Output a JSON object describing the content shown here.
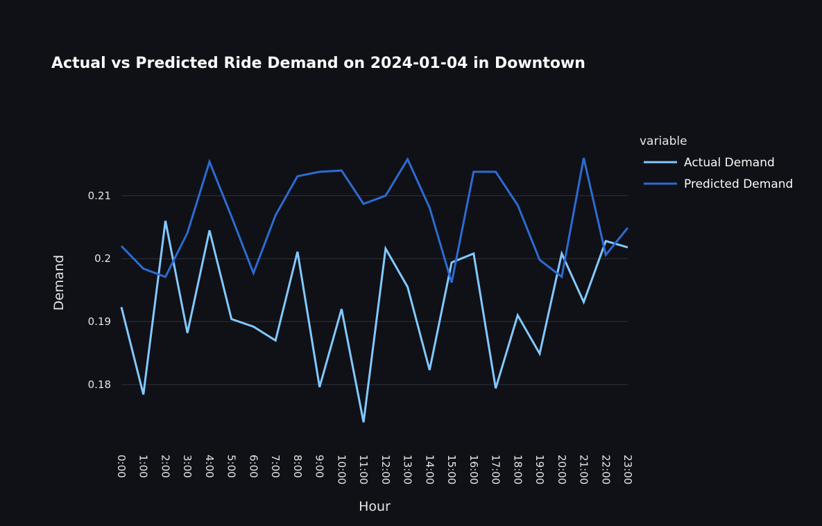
{
  "chart_data": {
    "type": "line",
    "title": "Actual vs Predicted Ride Demand on 2024-01-04 in Downtown",
    "xlabel": "Hour",
    "ylabel": "Demand",
    "categories": [
      "0:00",
      "1:00",
      "2:00",
      "3:00",
      "4:00",
      "5:00",
      "6:00",
      "7:00",
      "8:00",
      "9:00",
      "10:00",
      "11:00",
      "12:00",
      "13:00",
      "14:00",
      "15:00",
      "16:00",
      "17:00",
      "18:00",
      "19:00",
      "20:00",
      "21:00",
      "22:00",
      "23:00"
    ],
    "yticks": [
      0.18,
      0.19,
      0.2,
      0.21
    ],
    "ytick_labels": [
      "0.18",
      "0.19",
      "0.2",
      "0.21"
    ],
    "ylim": [
      0.1715,
      0.2226
    ],
    "grid": true,
    "legend": {
      "title": "variable",
      "position": "right"
    },
    "series": [
      {
        "name": "Actual Demand",
        "color": "#83c9ff",
        "values": [
          0.1923,
          0.1784,
          0.206,
          0.1882,
          0.2045,
          0.1904,
          0.1892,
          0.187,
          0.2011,
          0.1796,
          0.192,
          0.174,
          0.2016,
          0.1955,
          0.1823,
          0.1994,
          0.2008,
          0.1794,
          0.191,
          0.1849,
          0.2008,
          0.1931,
          0.2028,
          0.2018
        ]
      },
      {
        "name": "Predicted Demand",
        "color": "#2e6bd0",
        "values": [
          0.202,
          0.1984,
          0.1971,
          0.2041,
          0.2154,
          0.2067,
          0.1977,
          0.2069,
          0.2131,
          0.2138,
          0.214,
          0.2087,
          0.21,
          0.2158,
          0.2081,
          0.1962,
          0.2138,
          0.2138,
          0.2085,
          0.1998,
          0.1971,
          0.216,
          0.2006,
          0.2049
        ]
      }
    ]
  }
}
